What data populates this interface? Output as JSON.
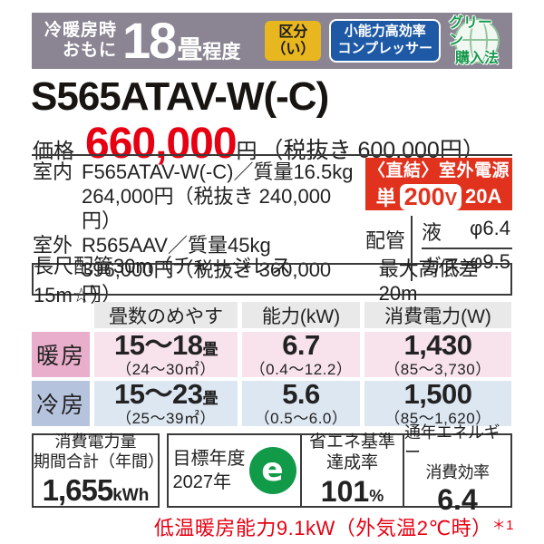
{
  "header": {
    "usage_line1": "冷暖房時",
    "usage_line2": "おもに",
    "tatami_count": "18",
    "tatami_unit": "畳",
    "tatami_suffix": "程度",
    "badge_kubun_line1": "区分",
    "badge_kubun_line2": "（い）",
    "badge_compressor_line1": "小能力高効率",
    "badge_compressor_line2": "コンプレッサー",
    "badge_green_line1": "グリーン",
    "badge_green_line2": "購入法"
  },
  "model": "S565ATAV-W(-C)",
  "price": {
    "label": "価格",
    "amount": "660,000",
    "unit": "円",
    "tax_note": "（税抜き 600,000円）"
  },
  "units": {
    "indoor_label": "室内",
    "indoor_spec": "F565ATAV-W(-C)／質量16.5kg",
    "indoor_price": "264,000円（税抜き 240,000円）",
    "outdoor_label": "室外",
    "outdoor_spec": "R565AAV／質量45kg",
    "outdoor_price": "396,000円（税抜き 360,000円）"
  },
  "power": {
    "line1": "〈直結〉室外電源",
    "phase": "単",
    "voltage_num": "200",
    "voltage_unit": "V",
    "amperage": "20A"
  },
  "piping": {
    "label": "配管",
    "liquid_label": "液",
    "liquid_value": "φ6.4",
    "gas_label": "ガス",
    "gas_value": "φ9.5"
  },
  "pipe_info": {
    "left": "長尺配管30m（チャージレス15m☆）",
    "right": "最大高低差20m"
  },
  "spec_table": {
    "col_area": "畳数のめやす",
    "col_capacity": "能力(kW)",
    "col_power": "消費電力(W)",
    "rows": [
      {
        "label": "暖房",
        "area": "15〜18",
        "area_unit": "畳",
        "area_range": "（24〜30㎡）",
        "capacity": "6.7",
        "capacity_range": "（0.4〜12.2）",
        "watt": "1,430",
        "watt_range": "（85〜3,730）"
      },
      {
        "label": "冷房",
        "area": "15〜23",
        "area_unit": "畳",
        "area_range": "（25〜39㎡）",
        "capacity": "5.6",
        "capacity_range": "（0.5〜6.0）",
        "watt": "1,500",
        "watt_range": "（85〜1,620）"
      }
    ]
  },
  "energy": {
    "annual_label1": "消費電力量",
    "annual_label2": "期間合計（年間）",
    "annual_value": "1,655",
    "annual_unit": "kWh",
    "target_label1": "目標年度",
    "target_label2": "2027年",
    "e_mark": "e",
    "standard_label1": "省エネ基準",
    "standard_label2": "達成率",
    "standard_value": "101",
    "standard_unit": "%",
    "apf_label1": "通年エネルギー",
    "apf_label2": "消費効率",
    "apf_value": "6.4"
  },
  "footnote": {
    "text": "低温暖房能力9.1kW（外気温2℃時）",
    "marker": "＊1"
  },
  "colors": {
    "accent_red": "#e1321e",
    "price_red": "#e60012",
    "header_gray": "#8b8593",
    "badge_yellow": "#e8b71f",
    "badge_blue": "#1e59a5",
    "green": "#179a4b",
    "heating_label_pink": "#e9aecb",
    "heating_cell_pink": "#f8e3ec",
    "cooling_label_blue": "#b5c3dd",
    "cooling_cell_blue": "#dde7f2",
    "table_header_gray": "#e9e9e9"
  }
}
